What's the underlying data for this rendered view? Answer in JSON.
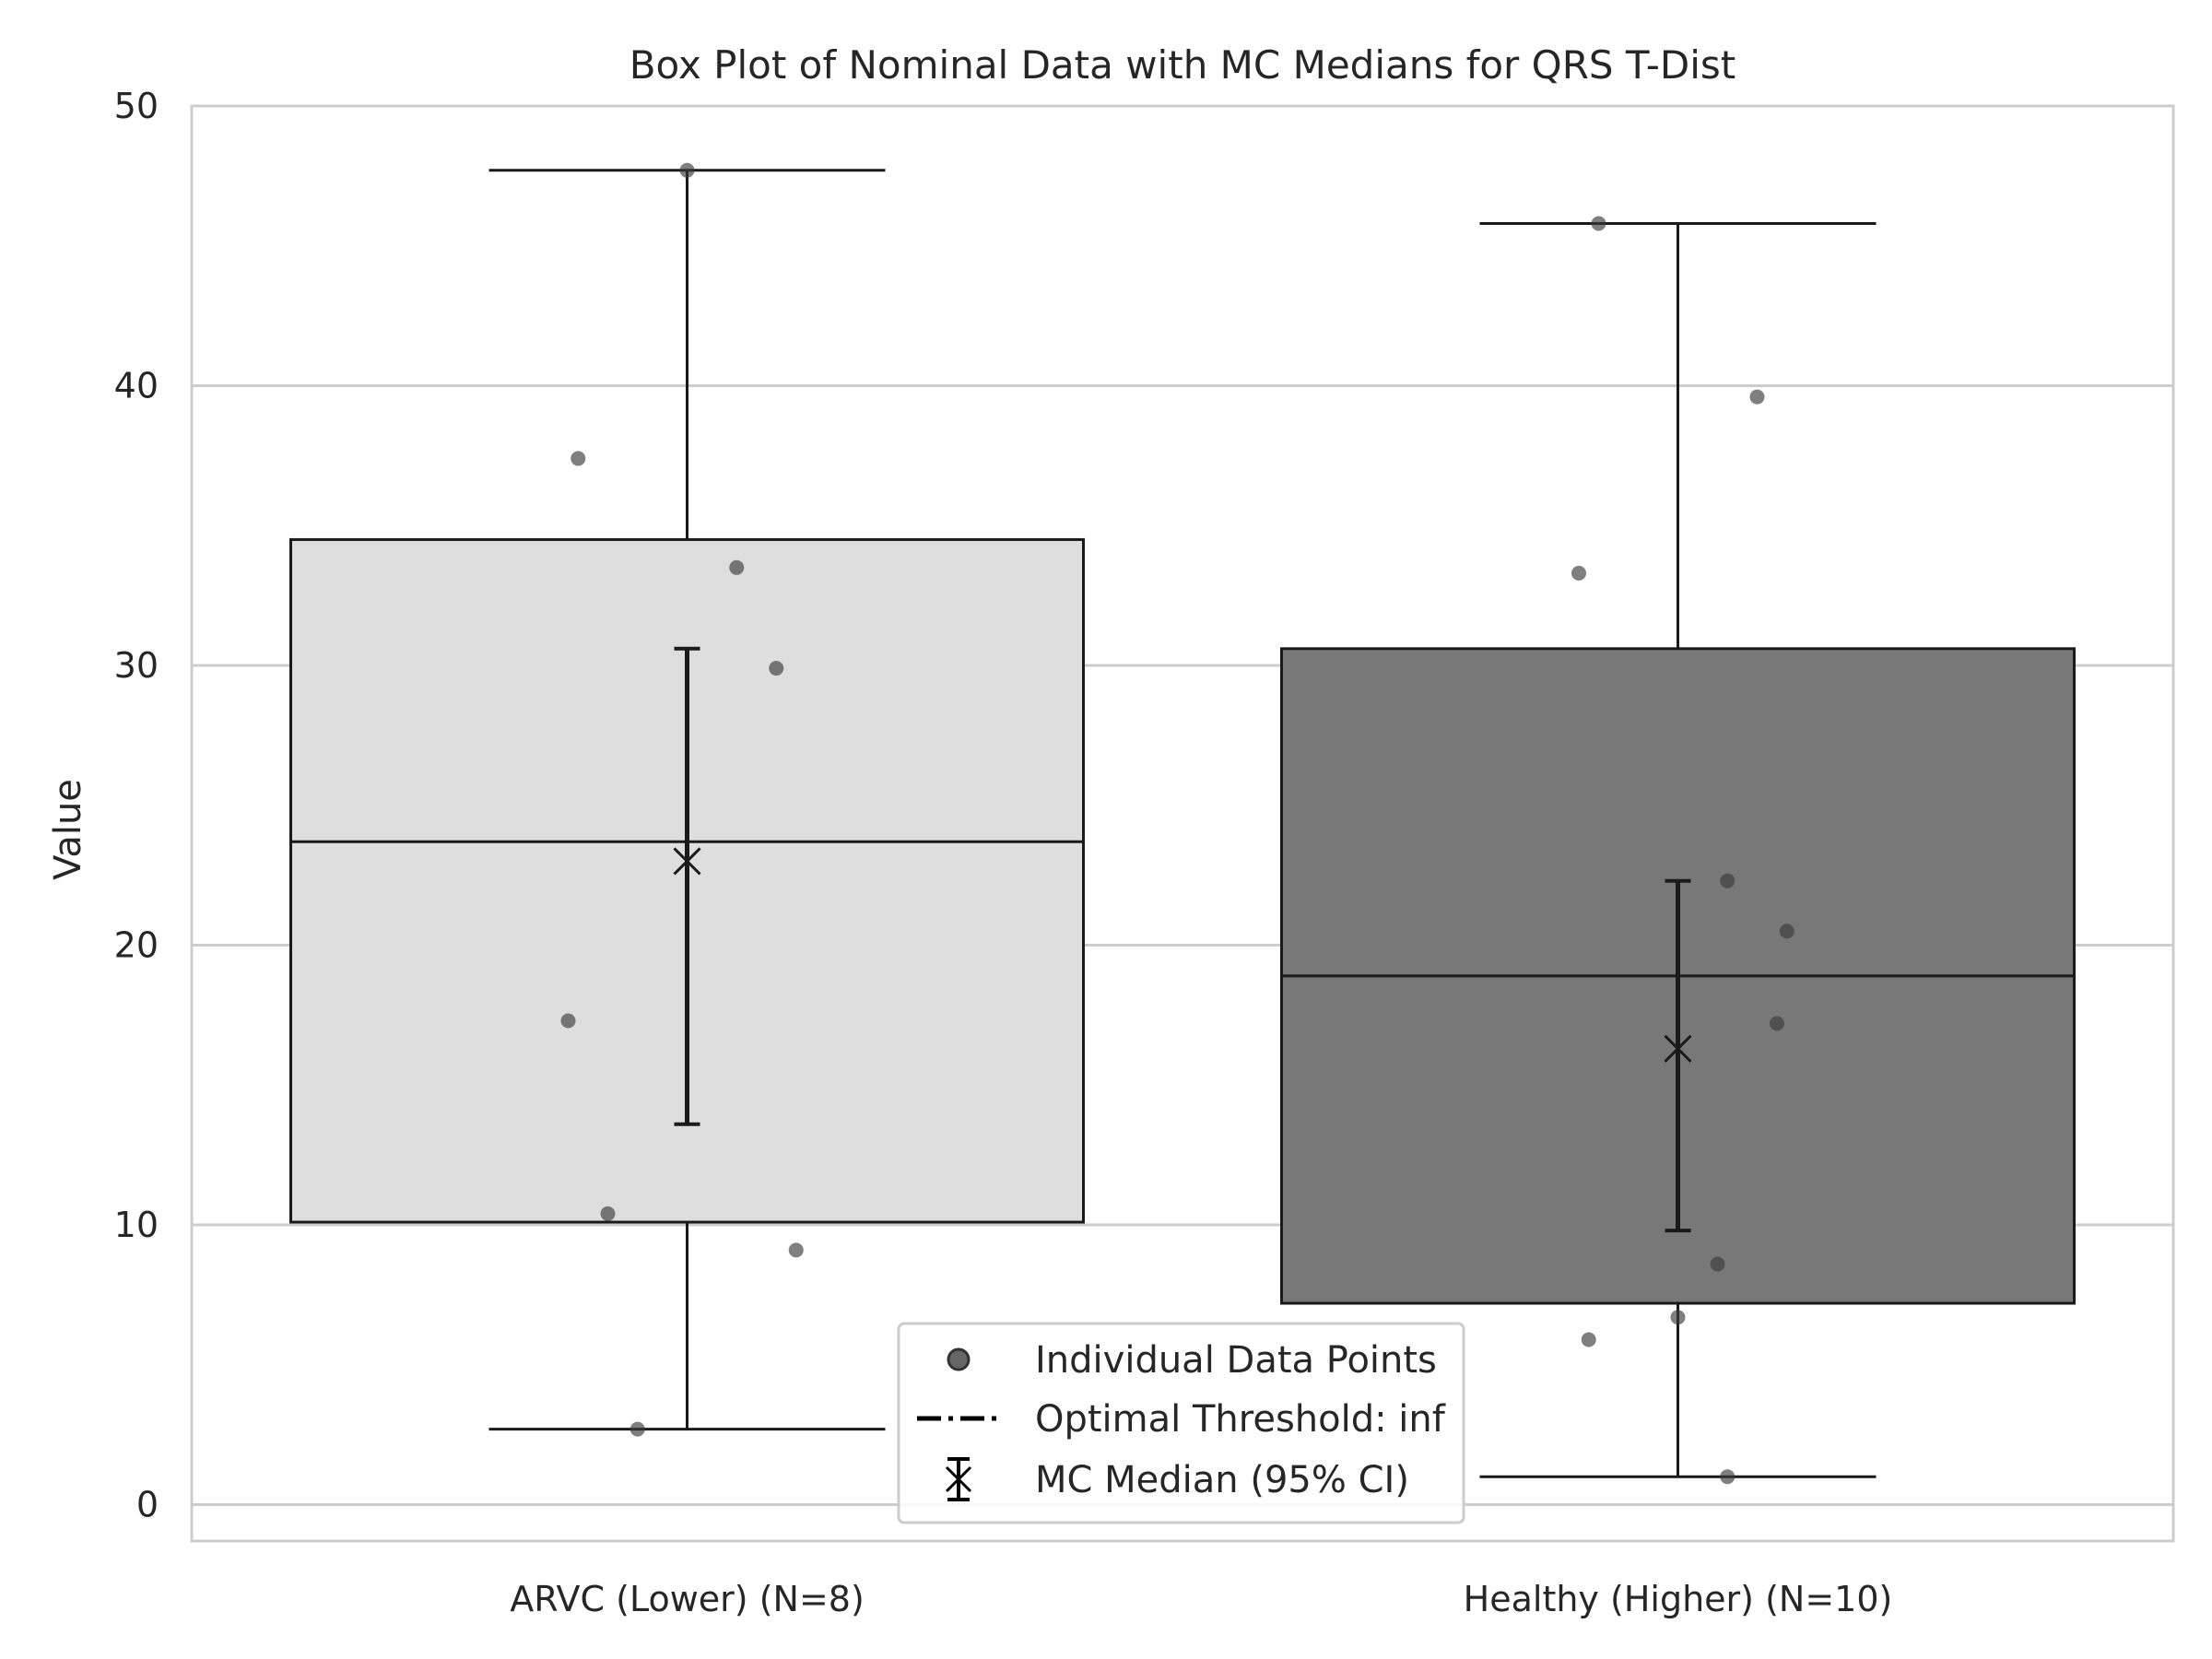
{
  "chart_data": {
    "type": "box",
    "title": "Box Plot of Nominal Data with MC Medians for QRS T-Dist",
    "xlabel": "",
    "ylabel": "Value",
    "ylim": [
      -1.3,
      50
    ],
    "yticks": [
      0,
      10,
      20,
      30,
      40,
      50
    ],
    "grid": true,
    "legend_placement": "bottom-center",
    "groups": [
      {
        "label": "ARVC (Lower) (N=8)",
        "color": "#dedede",
        "whisker_low": 2.7,
        "q1": 10.1,
        "median": 23.7,
        "q3": 34.5,
        "whisker_high": 47.7,
        "mc_median": 23.0,
        "ci": [
          13.6,
          30.6
        ],
        "points": [
          {
            "offset": -0.11,
            "value": 37.4
          },
          {
            "offset": 0.05,
            "value": 33.5
          },
          {
            "offset": 0.09,
            "value": 29.9
          },
          {
            "offset": -0.12,
            "value": 17.3
          },
          {
            "offset": -0.08,
            "value": 10.4
          },
          {
            "offset": 0.11,
            "value": 9.1
          },
          {
            "offset": -0.05,
            "value": 2.7
          },
          {
            "offset": 0.0,
            "value": 47.7
          }
        ]
      },
      {
        "label": "Healthy (Higher) (N=10)",
        "color": "#787878",
        "whisker_low": 1.0,
        "q1": 7.2,
        "median": 18.9,
        "q3": 30.6,
        "whisker_high": 45.8,
        "mc_median": 16.3,
        "ci": [
          9.8,
          22.3
        ],
        "points": [
          {
            "offset": -0.08,
            "value": 45.8
          },
          {
            "offset": 0.08,
            "value": 39.6
          },
          {
            "offset": -0.1,
            "value": 33.3
          },
          {
            "offset": 0.05,
            "value": 22.3
          },
          {
            "offset": 0.11,
            "value": 20.5
          },
          {
            "offset": 0.1,
            "value": 17.2
          },
          {
            "offset": 0.04,
            "value": 8.6
          },
          {
            "offset": 0.0,
            "value": 6.7
          },
          {
            "offset": -0.09,
            "value": 5.9
          },
          {
            "offset": 0.05,
            "value": 1.0
          }
        ]
      }
    ],
    "legend": [
      {
        "label": "Individual Data Points",
        "marker": "circle"
      },
      {
        "label": "Optimal Threshold: inf",
        "marker": "dashdot-line"
      },
      {
        "label": "MC Median (95% CI)",
        "marker": "x-errorbar"
      }
    ]
  }
}
